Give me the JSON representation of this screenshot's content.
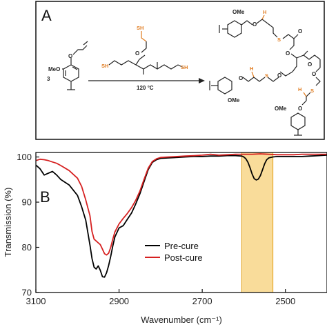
{
  "panel_a": {
    "letter": "A",
    "reactant_coefficient": "3",
    "reactant_substituent": "MeO",
    "reaction_condition": "120 °C",
    "crosslinker_thiol_label": "SH",
    "product_substituent": "OMe",
    "product_h_label": "H",
    "product_s_label": "S"
  },
  "panel_b": {
    "letter": "B"
  },
  "colors": {
    "pre_cure": "#000000",
    "post_cure": "#d62020",
    "highlight": "#f2b21f",
    "thiol": "#e07a1c"
  },
  "chart_data": {
    "type": "line",
    "xlabel": "Wavenumber (cm⁻¹)",
    "ylabel": "Transmission (%)",
    "xlim": [
      3100,
      2400
    ],
    "ylim": [
      70,
      101
    ],
    "x_reversed": true,
    "xticks": [
      "3100",
      "2900",
      "2700",
      "2500"
    ],
    "yticks": [
      "70",
      "80",
      "90",
      "100"
    ],
    "legend_position": "lower-center",
    "highlight_band": [
      2605,
      2530
    ],
    "series": [
      {
        "name": "Pre-cure",
        "color": "#000000",
        "x": [
          3100,
          3090,
          3080,
          3070,
          3060,
          3050,
          3040,
          3020,
          3000,
          2990,
          2980,
          2970,
          2965,
          2960,
          2955,
          2950,
          2945,
          2940,
          2935,
          2930,
          2925,
          2920,
          2915,
          2910,
          2900,
          2890,
          2880,
          2870,
          2860,
          2850,
          2840,
          2830,
          2820,
          2810,
          2800,
          2780,
          2760,
          2740,
          2720,
          2700,
          2680,
          2660,
          2640,
          2620,
          2605,
          2600,
          2595,
          2590,
          2585,
          2580,
          2575,
          2570,
          2565,
          2560,
          2555,
          2550,
          2545,
          2540,
          2530,
          2520,
          2500,
          2480,
          2460,
          2440,
          2420,
          2400
        ],
        "y": [
          98.2,
          97.4,
          96.0,
          96.4,
          96.8,
          96.0,
          95.0,
          93.8,
          91.5,
          89.0,
          86.0,
          80.5,
          77.5,
          75.6,
          75.2,
          75.9,
          74.9,
          73.5,
          73.4,
          74.4,
          76.0,
          78.0,
          80.3,
          82.3,
          84.3,
          84.8,
          86.2,
          87.6,
          89.6,
          91.8,
          94.5,
          97.2,
          98.8,
          99.4,
          99.7,
          99.8,
          99.9,
          100.0,
          100.1,
          100.1,
          100.2,
          100.2,
          100.3,
          100.3,
          100.2,
          100.0,
          99.6,
          98.8,
          97.6,
          96.2,
          95.2,
          94.9,
          95.1,
          95.9,
          97.2,
          98.5,
          99.4,
          99.8,
          100.0,
          100.1,
          100.1,
          100.1,
          100.1,
          100.2,
          100.3,
          100.4
        ]
      },
      {
        "name": "Post-cure",
        "color": "#d62020",
        "x": [
          3100,
          3090,
          3080,
          3070,
          3060,
          3050,
          3040,
          3020,
          3000,
          2990,
          2980,
          2970,
          2965,
          2960,
          2955,
          2950,
          2945,
          2940,
          2935,
          2930,
          2925,
          2920,
          2915,
          2910,
          2900,
          2890,
          2880,
          2870,
          2860,
          2850,
          2840,
          2830,
          2820,
          2810,
          2800,
          2780,
          2760,
          2740,
          2720,
          2700,
          2680,
          2660,
          2640,
          2620,
          2605,
          2600,
          2580,
          2560,
          2540,
          2520,
          2500,
          2480,
          2460,
          2440,
          2420,
          2400
        ],
        "y": [
          99.2,
          99.5,
          99.4,
          99.2,
          98.9,
          98.6,
          98.1,
          97.0,
          95.3,
          93.5,
          90.5,
          87.0,
          83.5,
          81.8,
          81.4,
          81.0,
          80.6,
          79.6,
          78.6,
          78.3,
          78.7,
          80.0,
          81.8,
          83.4,
          85.2,
          86.4,
          87.5,
          88.8,
          90.4,
          92.4,
          95.0,
          97.5,
          99.0,
          99.6,
          99.9,
          100.0,
          100.1,
          100.2,
          100.3,
          100.4,
          100.6,
          100.4,
          100.5,
          100.6,
          100.6,
          100.6,
          100.6,
          100.7,
          100.6,
          100.5,
          100.5,
          100.5,
          100.6,
          100.6,
          100.6,
          100.6
        ]
      }
    ]
  }
}
